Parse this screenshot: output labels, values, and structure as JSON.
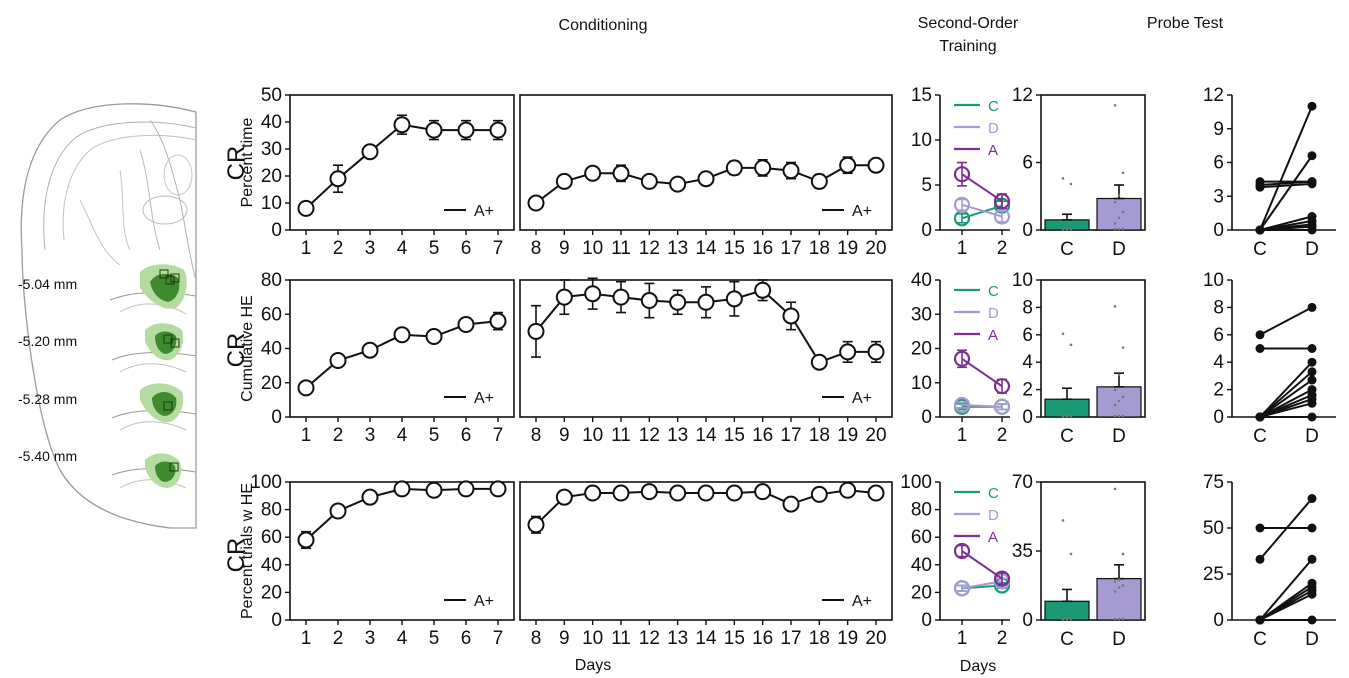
{
  "headers": {
    "conditioning": "Conditioning",
    "second_order_l1": "Second-Order",
    "second_order_l2": "Training",
    "probe": "Probe Test"
  },
  "brain": {
    "labels": [
      "-5.04 mm",
      "-5.20 mm",
      "-5.28 mm",
      "-5.40 mm"
    ],
    "colors": {
      "light": "#b5dca0",
      "dark": "#3f8a2e",
      "outline": "#9a9a9a"
    }
  },
  "colors": {
    "C": "#1a9a74",
    "D": "#a59bd2",
    "A": "#7b2d99",
    "black": "#111111"
  },
  "row_labels": [
    "CR",
    "CR",
    "CR"
  ],
  "xlabel": "Days",
  "chart_data": [
    {
      "type": "line",
      "panel": "cond-1",
      "row": 0,
      "ylabel": "Percent time",
      "ylim": [
        0,
        50
      ],
      "yticks": [
        0,
        10,
        20,
        30,
        40,
        50
      ],
      "x": [
        1,
        2,
        3,
        4,
        5,
        6,
        7
      ],
      "y": [
        8,
        19,
        29,
        39,
        37,
        37,
        37
      ],
      "err": [
        1.5,
        5,
        2,
        3.5,
        3.5,
        3.5,
        3.5
      ],
      "legend": "A+"
    },
    {
      "type": "line",
      "panel": "cond-2",
      "row": 0,
      "x": [
        8,
        9,
        10,
        11,
        12,
        13,
        14,
        15,
        16,
        17,
        18,
        19,
        20
      ],
      "y": [
        10,
        18,
        21,
        21,
        18,
        17,
        19,
        23,
        23,
        22,
        18,
        24,
        24
      ],
      "err": [
        1,
        1.5,
        2,
        3,
        2,
        1.5,
        2,
        2.5,
        3,
        3,
        2.5,
        3,
        2
      ],
      "legend": "A+"
    },
    {
      "type": "line",
      "panel": "so-1",
      "row": 0,
      "ylim": [
        0,
        15
      ],
      "yticks": [
        0,
        5,
        10,
        15
      ],
      "x": [
        1,
        2
      ],
      "series": [
        {
          "name": "C",
          "values": [
            1.3,
            2.7
          ],
          "err": [
            0.5,
            0.5
          ]
        },
        {
          "name": "D",
          "values": [
            2.8,
            1.5
          ],
          "err": [
            0.6,
            0.6
          ]
        },
        {
          "name": "A",
          "values": [
            6.2,
            3.2
          ],
          "err": [
            1.3,
            0.8
          ]
        }
      ]
    },
    {
      "type": "bar",
      "panel": "bar-1",
      "row": 0,
      "ylim": [
        0,
        12
      ],
      "yticks": [
        0,
        6,
        12
      ],
      "categories": [
        "C",
        "D"
      ],
      "values": [
        0.9,
        2.8
      ],
      "err": [
        0.5,
        1.2
      ],
      "points": [
        [
          0,
          0,
          0,
          0,
          0,
          0,
          0,
          0,
          4,
          4.5
        ],
        [
          0,
          0,
          0,
          0.5,
          1,
          1.5,
          2.4,
          3,
          5,
          11
        ]
      ]
    },
    {
      "type": "line",
      "panel": "pair-1",
      "row": 0,
      "ylim": [
        0,
        12
      ],
      "yticks": [
        0,
        3,
        6,
        9,
        12
      ],
      "categories": [
        "C",
        "D"
      ],
      "pairs": [
        [
          4,
          4.3
        ],
        [
          4.3,
          4.3
        ],
        [
          3.8,
          4.1
        ],
        [
          0,
          11
        ],
        [
          0,
          6.6
        ],
        [
          0,
          1.2
        ],
        [
          0,
          0.8
        ],
        [
          0,
          0.5
        ],
        [
          0,
          0.3
        ],
        [
          0,
          0
        ]
      ]
    },
    {
      "type": "line",
      "panel": "cond-1",
      "row": 1,
      "ylabel": "Cumulative HE",
      "ylim": [
        0,
        80
      ],
      "yticks": [
        0,
        20,
        40,
        60,
        80
      ],
      "x": [
        1,
        2,
        3,
        4,
        5,
        6,
        7
      ],
      "y": [
        17,
        33,
        39,
        48,
        47,
        54,
        56
      ],
      "err": [
        2,
        3,
        3,
        3,
        3,
        3,
        5
      ],
      "legend": "A+"
    },
    {
      "type": "line",
      "panel": "cond-2",
      "row": 1,
      "x": [
        8,
        9,
        10,
        11,
        12,
        13,
        14,
        15,
        16,
        17,
        18,
        19,
        20
      ],
      "y": [
        50,
        70,
        72,
        70,
        68,
        67,
        67,
        69,
        74,
        59,
        32,
        38,
        38
      ],
      "err": [
        15,
        10,
        9,
        9,
        10,
        7,
        9,
        10,
        6,
        8,
        3,
        6,
        6
      ],
      "legend": "A+"
    },
    {
      "type": "line",
      "panel": "so-2",
      "row": 1,
      "ylim": [
        0,
        40
      ],
      "yticks": [
        0,
        10,
        20,
        30,
        40
      ],
      "x": [
        1,
        2
      ],
      "series": [
        {
          "name": "C",
          "values": [
            3,
            3
          ],
          "err": [
            0.8,
            0.8
          ]
        },
        {
          "name": "D",
          "values": [
            3.5,
            3
          ],
          "err": [
            0.8,
            0.8
          ]
        },
        {
          "name": "A",
          "values": [
            17,
            9
          ],
          "err": [
            2.5,
            2
          ]
        }
      ]
    },
    {
      "type": "bar",
      "panel": "bar-2",
      "row": 1,
      "ylim": [
        0,
        10
      ],
      "yticks": [
        0,
        2,
        4,
        6,
        8,
        10
      ],
      "categories": [
        "C",
        "D"
      ],
      "values": [
        1.3,
        2.2
      ],
      "err": [
        0.8,
        1.0
      ],
      "points": [
        [
          0,
          0,
          0,
          0,
          0,
          0,
          0,
          0,
          5.2,
          6
        ],
        [
          0,
          0,
          0,
          0.8,
          1.1,
          1.4,
          1.9,
          3,
          5,
          8
        ]
      ]
    },
    {
      "type": "line",
      "panel": "pair-2",
      "row": 1,
      "ylim": [
        0,
        10
      ],
      "yticks": [
        0,
        2,
        4,
        6,
        8,
        10
      ],
      "categories": [
        "C",
        "D"
      ],
      "pairs": [
        [
          6,
          8
        ],
        [
          5,
          5
        ],
        [
          0,
          4
        ],
        [
          0,
          3.3
        ],
        [
          0,
          2.7
        ],
        [
          0,
          2
        ],
        [
          0,
          1.6
        ],
        [
          0,
          1.3
        ],
        [
          0,
          1
        ],
        [
          0,
          0
        ]
      ]
    },
    {
      "type": "line",
      "panel": "cond-1",
      "row": 2,
      "ylabel": "Percent trials w HE",
      "ylim": [
        0,
        100
      ],
      "yticks": [
        0,
        20,
        40,
        60,
        80,
        100
      ],
      "x": [
        1,
        2,
        3,
        4,
        5,
        6,
        7
      ],
      "y": [
        58,
        79,
        89,
        95,
        94,
        95,
        95
      ],
      "err": [
        6,
        4,
        3,
        2,
        2,
        2,
        2
      ],
      "legend": "A+"
    },
    {
      "type": "line",
      "panel": "cond-2",
      "row": 2,
      "x": [
        8,
        9,
        10,
        11,
        12,
        13,
        14,
        15,
        16,
        17,
        18,
        19,
        20
      ],
      "y": [
        69,
        89,
        92,
        92,
        93,
        92,
        92,
        92,
        93,
        84,
        91,
        94,
        92
      ],
      "err": [
        6,
        3,
        2,
        2,
        2,
        2,
        2,
        2,
        2,
        3,
        2,
        2,
        2
      ],
      "legend": "A+"
    },
    {
      "type": "line",
      "panel": "so-3",
      "row": 2,
      "ylim": [
        0,
        100
      ],
      "yticks": [
        0,
        20,
        40,
        60,
        80,
        100
      ],
      "x": [
        1,
        2
      ],
      "series": [
        {
          "name": "C",
          "values": [
            23,
            25
          ],
          "err": [
            2,
            2
          ]
        },
        {
          "name": "D",
          "values": [
            23,
            28
          ],
          "err": [
            2,
            2
          ]
        },
        {
          "name": "A",
          "values": [
            50,
            30
          ],
          "err": [
            4,
            4
          ]
        }
      ]
    },
    {
      "type": "bar",
      "panel": "bar-3",
      "row": 2,
      "ylim": [
        0,
        70
      ],
      "yticks": [
        0,
        35,
        70
      ],
      "categories": [
        "C",
        "D"
      ],
      "values": [
        9.5,
        21
      ],
      "err": [
        6,
        7
      ],
      "points": [
        [
          0,
          0,
          0,
          0,
          0,
          0,
          0,
          0,
          33,
          50
        ],
        [
          0,
          0,
          0,
          14,
          16,
          17,
          19,
          20,
          33,
          66
        ]
      ]
    },
    {
      "type": "line",
      "panel": "pair-3",
      "row": 2,
      "ylim": [
        0,
        75
      ],
      "yticks": [
        0,
        25,
        50,
        75
      ],
      "categories": [
        "C",
        "D"
      ],
      "pairs": [
        [
          50,
          50
        ],
        [
          33,
          66
        ],
        [
          0,
          33
        ],
        [
          0,
          20
        ],
        [
          0,
          18
        ],
        [
          0,
          16
        ],
        [
          0,
          14
        ],
        [
          0,
          0
        ]
      ]
    }
  ]
}
